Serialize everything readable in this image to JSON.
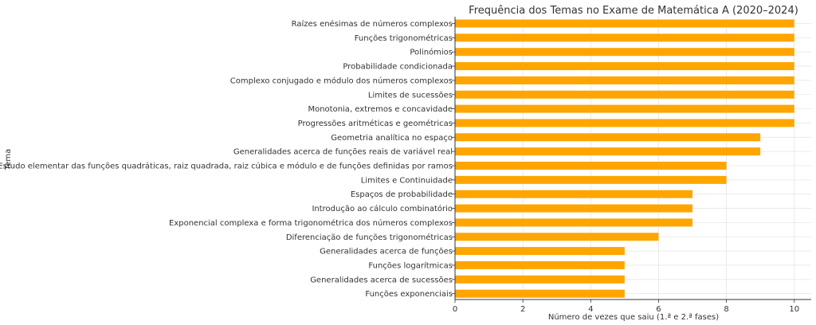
{
  "chart_data": {
    "type": "bar",
    "orientation": "horizontal",
    "title": "Frequência dos Temas no Exame de Matemática A (2020–2024)",
    "xlabel": "Número de vezes que saiu (1.ª e 2.ª fases)",
    "ylabel": "Tema",
    "xlim": [
      0,
      10.5
    ],
    "xticks": [
      0,
      2,
      4,
      6,
      8,
      10
    ],
    "grid": true,
    "bar_color": "#ffa500",
    "categories": [
      "Raízes enésimas de números complexos",
      "Funções trigonométricas",
      "Polinómios",
      "Probabilidade condicionada",
      "Complexo conjugado e módulo dos números complexos",
      "Limites de sucessões",
      "Monotonia, extremos e concavidade",
      "Progressões aritméticas e geométricas",
      "Geometria analítica no espaço",
      "Generalidades acerca de funções reais de variável real",
      "Estudo elementar das funções quadráticas, raiz quadrada, raiz cúbica e módulo e de funções definidas por ramos",
      "Limites e Continuidade",
      "Espaços de probabilidade",
      "Introdução ao cálculo combinatório",
      "Exponencial complexa e forma trigonométrica dos números complexos",
      "Diferenciação de funções trigonométricas",
      "Generalidades acerca de funções",
      "Funções logarítmicas",
      "Generalidades acerca de sucessões",
      "Funções exponenciais"
    ],
    "values": [
      10,
      10,
      10,
      10,
      10,
      10,
      10,
      10,
      9,
      9,
      8,
      8,
      7,
      7,
      7,
      6,
      5,
      5,
      5,
      5
    ]
  }
}
